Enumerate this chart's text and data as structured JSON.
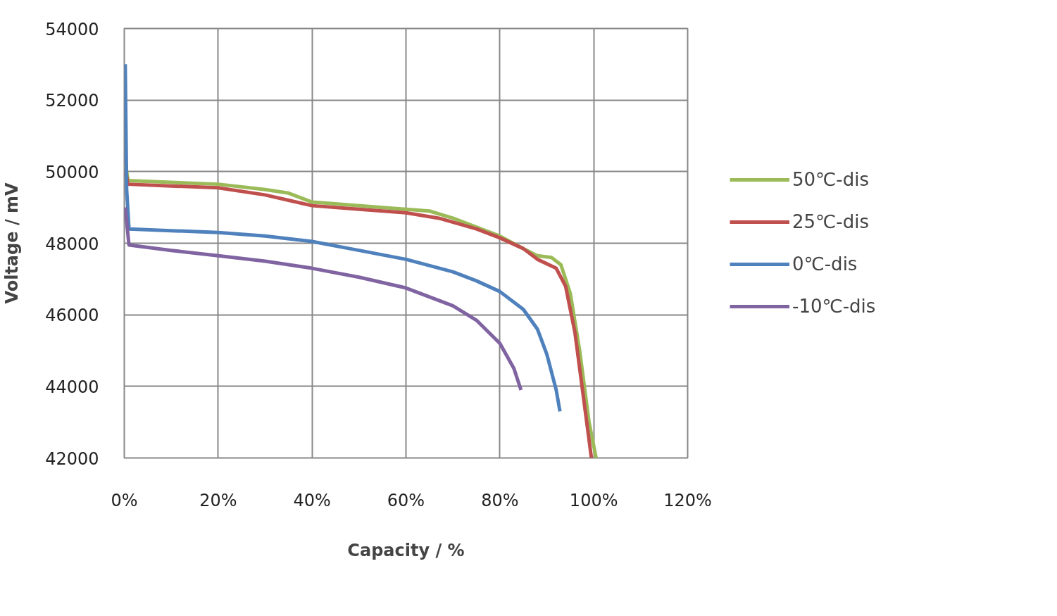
{
  "chart_data": {
    "type": "line",
    "xlabel": "Capacity / %",
    "ylabel": "Voltage / mV",
    "xlim": [
      0,
      120
    ],
    "xticks": [
      {
        "value": 0,
        "label": "0%"
      },
      {
        "value": 20,
        "label": "20%"
      },
      {
        "value": 40,
        "label": "40%"
      },
      {
        "value": 60,
        "label": "60%"
      },
      {
        "value": 80,
        "label": "80%"
      },
      {
        "value": 100,
        "label": "100%"
      },
      {
        "value": 120,
        "label": "120%"
      }
    ],
    "ylim": [
      42000,
      54000
    ],
    "yticks": [
      42000,
      44000,
      46000,
      48000,
      50000,
      52000,
      54000
    ],
    "grid": true,
    "legend": "right",
    "marker": "none",
    "line_style": "solid",
    "series": [
      {
        "name": "50℃-dis",
        "color": "#9bbb59",
        "x": [
          0.3,
          0.8,
          10,
          20,
          30,
          35,
          40,
          45,
          55,
          65,
          70,
          75,
          80,
          85,
          88,
          91,
          93,
          95,
          97,
          99,
          100.5
        ],
        "values": [
          50200,
          49750,
          49700,
          49650,
          49500,
          49400,
          49150,
          49100,
          49000,
          48900,
          48700,
          48450,
          48200,
          47850,
          47650,
          47600,
          47400,
          46600,
          45000,
          43000,
          42000
        ]
      },
      {
        "name": "25℃-dis",
        "color": "#c0504d",
        "x": [
          0.3,
          0.8,
          10,
          20,
          30,
          35,
          40,
          50,
          60,
          67,
          75,
          80,
          85,
          88,
          92,
          94,
          96,
          98,
          99.5
        ],
        "values": [
          50000,
          49650,
          49600,
          49550,
          49350,
          49200,
          49050,
          48950,
          48850,
          48700,
          48400,
          48150,
          47850,
          47550,
          47300,
          46800,
          45500,
          43500,
          42000
        ]
      },
      {
        "name": "0℃-dis",
        "color": "#4f81bd",
        "x": [
          0.2,
          0.5,
          1,
          10,
          20,
          30,
          40,
          50,
          60,
          70,
          75,
          80,
          85,
          88,
          90,
          92,
          92.8
        ],
        "values": [
          53000,
          49500,
          48400,
          48350,
          48300,
          48200,
          48050,
          47800,
          47550,
          47200,
          46950,
          46650,
          46150,
          45600,
          44900,
          43900,
          43300
        ]
      },
      {
        "name": "-10℃-dis",
        "color": "#8064a2",
        "x": [
          0.2,
          1,
          10,
          20,
          30,
          40,
          50,
          60,
          70,
          75,
          80,
          83,
          84.5
        ],
        "values": [
          49000,
          47950,
          47800,
          47650,
          47500,
          47300,
          47050,
          46750,
          46250,
          45850,
          45200,
          44500,
          43900
        ]
      }
    ]
  }
}
